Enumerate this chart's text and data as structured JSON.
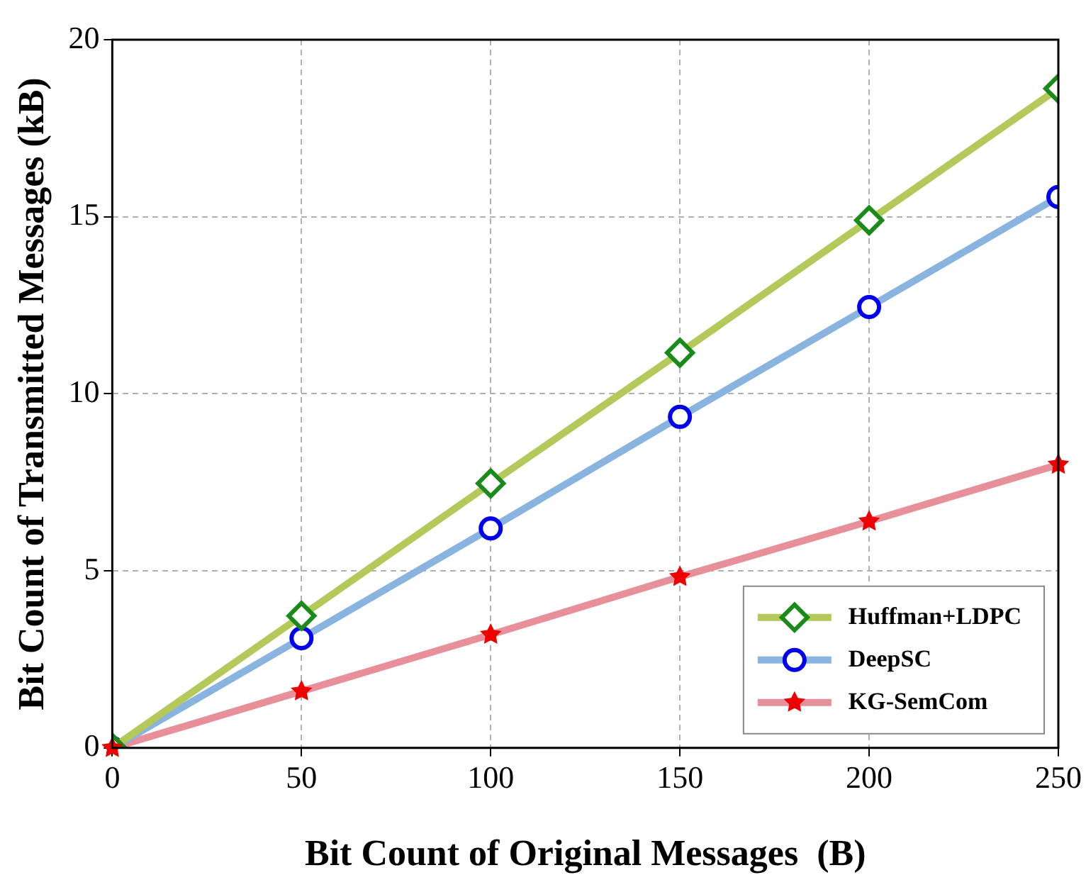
{
  "chart_data": {
    "type": "line",
    "xlabel": "Bit Count of Original Messages  (B)",
    "ylabel": "Bit Count of Transmitted Messages (kB)",
    "x": [
      0,
      50,
      100,
      150,
      200,
      250
    ],
    "series": [
      {
        "name": "Huffman+LDPC",
        "color": "#b3c95a",
        "colors": [
          "#1a8a1a",
          "#1a8a1a",
          "#1a8a1a",
          "#1a8a1a",
          "#1a8a1a",
          "#1a8a1a"
        ],
        "marker": "diamond",
        "values": [
          0,
          3.73,
          7.47,
          11.16,
          14.9,
          18.62
        ]
      },
      {
        "name": "DeepSC",
        "color": "#8ab4e0",
        "colors": [
          "#0000ee",
          "#0000ee",
          "#0000ee",
          "#0000ee",
          "#0000ee",
          "#0000ee"
        ],
        "marker": "circle",
        "values": [
          0,
          3.1,
          6.2,
          9.35,
          12.45,
          15.56
        ]
      },
      {
        "name": "KG-SemCom",
        "color": "#e8909a",
        "colors": [
          "#ee0000",
          "#ee0000",
          "#ee0000",
          "#ee0000",
          "#ee0000",
          "#ee0000"
        ],
        "marker": "star",
        "values": [
          0,
          1.6,
          3.2,
          4.83,
          6.4,
          8.0
        ]
      }
    ],
    "xlim": [
      0,
      250
    ],
    "xticks": [
      0,
      50,
      100,
      150,
      200,
      250
    ],
    "ylim": [
      0,
      20
    ],
    "yticks": [
      0,
      5,
      10,
      15,
      20
    ],
    "grid": true,
    "legend": "bottom right",
    "line_style": "solid"
  }
}
